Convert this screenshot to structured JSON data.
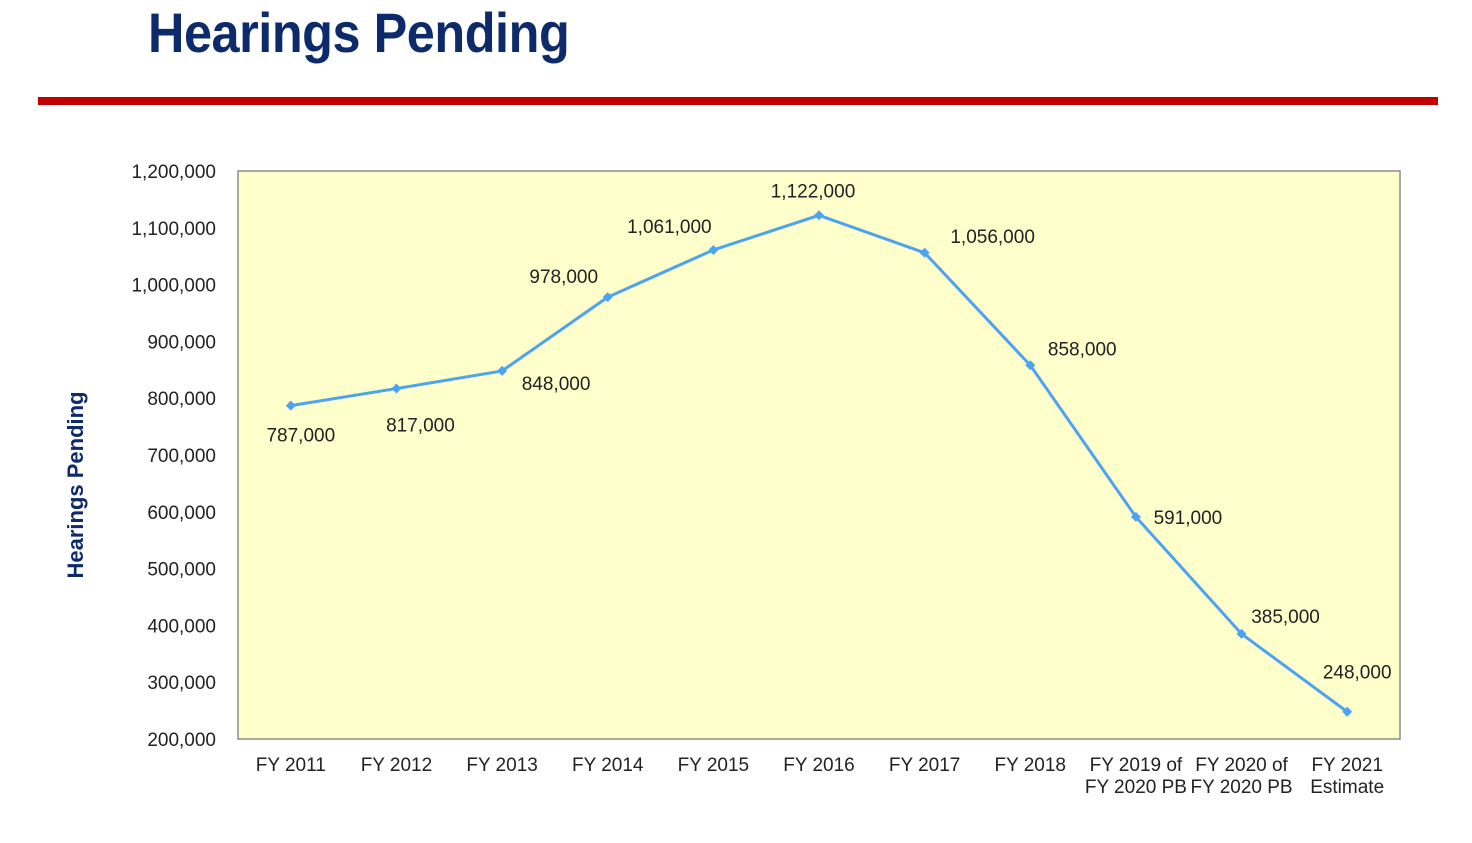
{
  "title": "Hearings Pending",
  "colors": {
    "title": "#0d2a6b",
    "rule": "#c00000",
    "plot_bg": "#ffffcc",
    "line": "#4da3f0",
    "axis_label": "#0d2a6b"
  },
  "chart_data": {
    "type": "line",
    "ylabel": "Hearings Pending",
    "xlabel": "",
    "ylim": [
      200000,
      1200000
    ],
    "yticks": [
      200000,
      300000,
      400000,
      500000,
      600000,
      700000,
      800000,
      900000,
      1000000,
      1100000,
      1200000
    ],
    "ytick_labels": [
      "200,000",
      "300,000",
      "400,000",
      "500,000",
      "600,000",
      "700,000",
      "800,000",
      "900,000",
      "1,000,000",
      "1,100,000",
      "1,200,000"
    ],
    "categories": [
      [
        "FY 2011"
      ],
      [
        "FY 2012"
      ],
      [
        "FY 2013"
      ],
      [
        "FY 2014"
      ],
      [
        "FY 2015"
      ],
      [
        "FY 2016"
      ],
      [
        "FY 2017"
      ],
      [
        "FY 2018"
      ],
      [
        "FY 2019 of",
        "FY 2020 PB"
      ],
      [
        "FY 2020 of",
        "FY 2020 PB"
      ],
      [
        "FY 2021",
        "Estimate"
      ]
    ],
    "values": [
      787000,
      817000,
      848000,
      978000,
      1061000,
      1122000,
      1056000,
      858000,
      591000,
      385000,
      248000
    ],
    "data_labels": [
      "787,000",
      "817,000",
      "848,000",
      "978,000",
      "1,061,000",
      "1,122,000",
      "1,056,000",
      "858,000",
      "591,000",
      "385,000",
      "248,000"
    ],
    "grid": false,
    "legend": "none",
    "marker": "diamond"
  }
}
